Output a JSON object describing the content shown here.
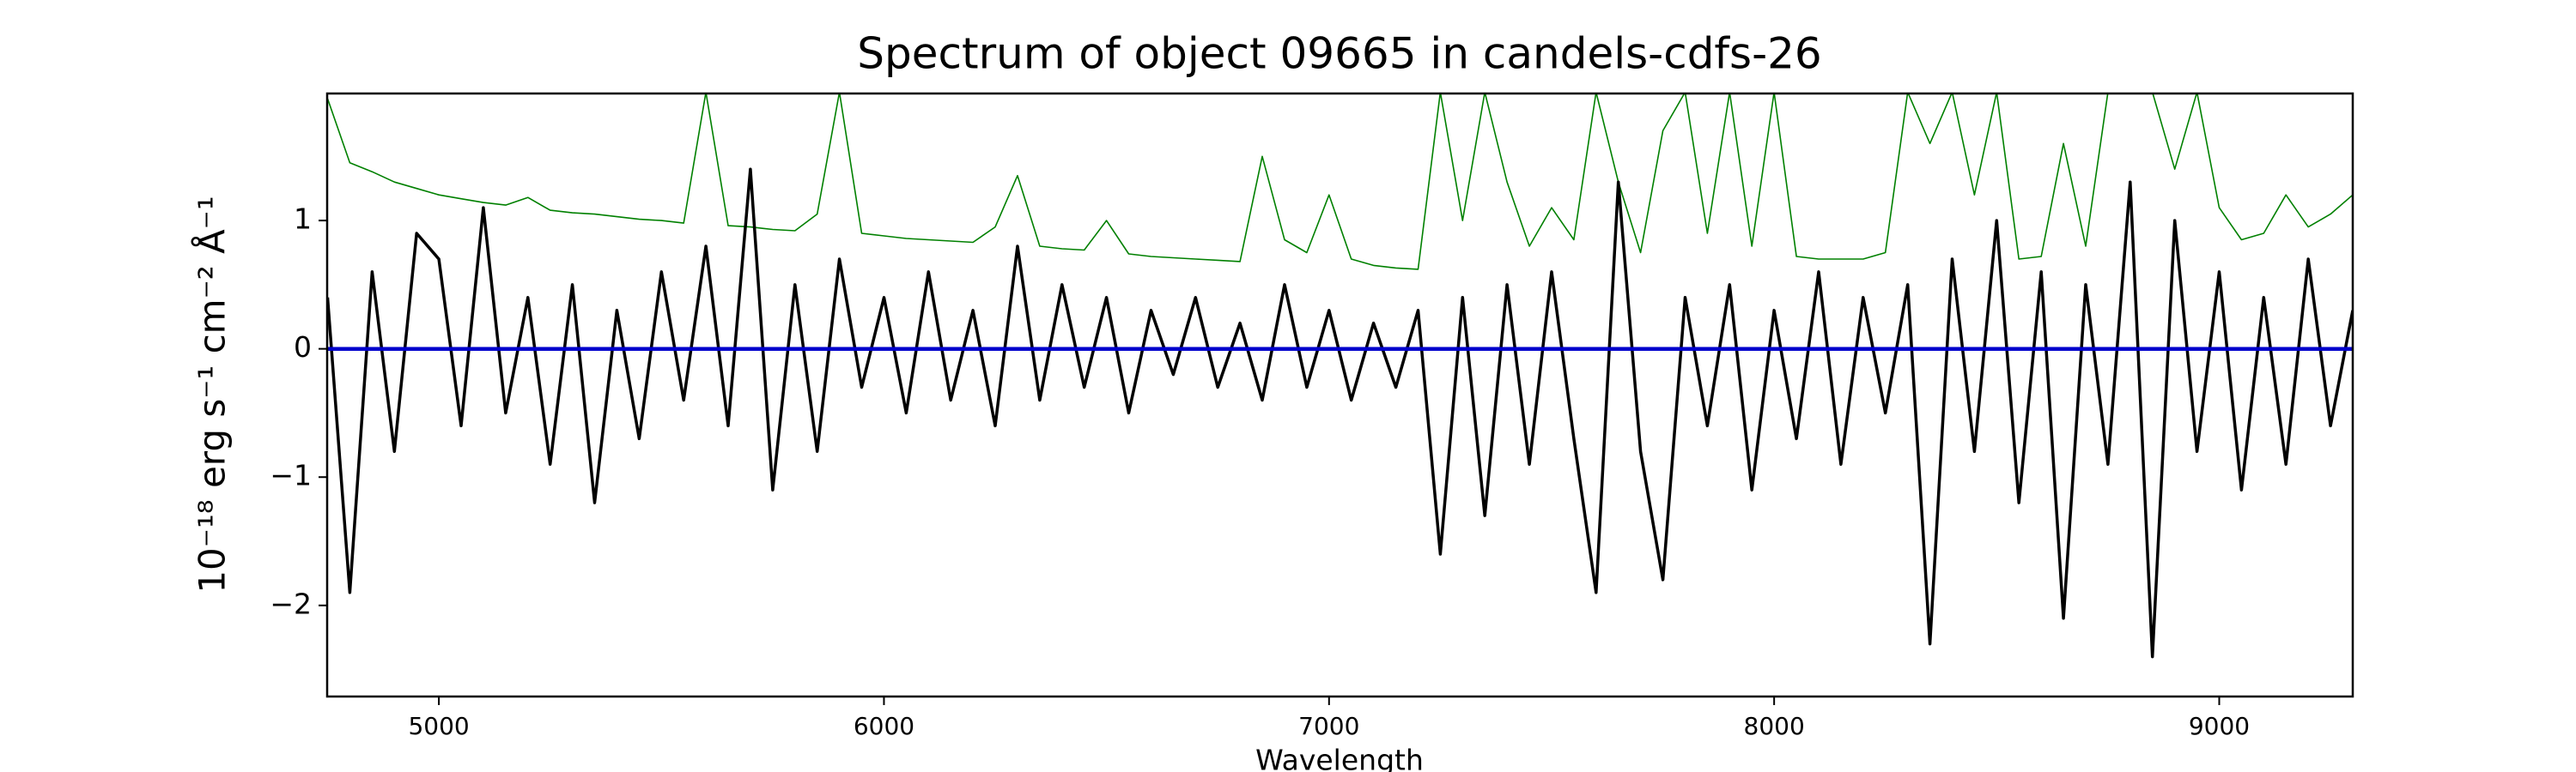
{
  "chart_data": {
    "type": "line",
    "title": "Spectrum of object 09665 in candels-cdfs-26",
    "x_label": "Wavelength",
    "y_label": "10⁻¹⁸ erg s⁻¹ cm⁻² Å⁻¹",
    "x": [
      4750,
      4800,
      4850,
      4900,
      4950,
      5000,
      5050,
      5100,
      5150,
      5200,
      5250,
      5300,
      5350,
      5400,
      5450,
      5500,
      5550,
      5600,
      5650,
      5700,
      5750,
      5800,
      5850,
      5900,
      5950,
      6000,
      6050,
      6100,
      6150,
      6200,
      6250,
      6300,
      6350,
      6400,
      6450,
      6500,
      6550,
      6600,
      6650,
      6700,
      6750,
      6800,
      6850,
      6900,
      6950,
      7000,
      7050,
      7100,
      7150,
      7200,
      7250,
      7300,
      7350,
      7400,
      7450,
      7500,
      7550,
      7600,
      7650,
      7700,
      7750,
      7800,
      7850,
      7900,
      7950,
      8000,
      8050,
      8100,
      8150,
      8200,
      8250,
      8300,
      8350,
      8400,
      8450,
      8500,
      8550,
      8600,
      8650,
      8700,
      8750,
      8800,
      8850,
      8900,
      8950,
      9000,
      9050,
      9100,
      9150,
      9200,
      9250,
      9300
    ],
    "series": [
      {
        "color": "#008000",
        "width": 1.6,
        "values": [
          1.95,
          1.45,
          1.38,
          1.3,
          1.25,
          1.2,
          1.17,
          1.14,
          1.12,
          1.18,
          1.08,
          1.06,
          1.05,
          1.03,
          1.01,
          1.0,
          0.98,
          2.0,
          0.96,
          0.95,
          0.93,
          0.92,
          1.05,
          2.0,
          0.9,
          0.88,
          0.86,
          0.85,
          0.84,
          0.83,
          0.95,
          1.35,
          0.8,
          0.78,
          0.77,
          1.0,
          0.74,
          0.72,
          0.71,
          0.7,
          0.69,
          0.68,
          1.5,
          0.85,
          0.75,
          1.2,
          0.7,
          0.65,
          0.63,
          0.62,
          2.0,
          1.0,
          2.0,
          1.3,
          0.8,
          1.1,
          0.85,
          2.0,
          1.3,
          0.75,
          1.7,
          2.0,
          0.9,
          2.0,
          0.8,
          2.0,
          0.72,
          0.7,
          0.7,
          0.7,
          0.75,
          2.0,
          1.6,
          2.0,
          1.2,
          2.0,
          0.7,
          0.72,
          1.6,
          0.8,
          2.0,
          2.0,
          2.0,
          1.4,
          2.0,
          1.1,
          0.85,
          0.9,
          1.2,
          0.95,
          1.05,
          1.2
        ]
      },
      {
        "color": "#000000",
        "width": 3.5,
        "values": [
          0.4,
          -1.9,
          0.6,
          -0.8,
          0.9,
          0.7,
          -0.6,
          1.1,
          -0.5,
          0.4,
          -0.9,
          0.5,
          -1.2,
          0.3,
          -0.7,
          0.6,
          -0.4,
          0.8,
          -0.6,
          1.4,
          -1.1,
          0.5,
          -0.8,
          0.7,
          -0.3,
          0.4,
          -0.5,
          0.6,
          -0.4,
          0.3,
          -0.6,
          0.8,
          -0.4,
          0.5,
          -0.3,
          0.4,
          -0.5,
          0.3,
          -0.2,
          0.4,
          -0.3,
          0.2,
          -0.4,
          0.5,
          -0.3,
          0.3,
          -0.4,
          0.2,
          -0.3,
          0.3,
          -1.6,
          0.4,
          -1.3,
          0.5,
          -0.9,
          0.6,
          -0.7,
          -1.9,
          1.3,
          -0.8,
          -1.8,
          0.4,
          -0.6,
          0.5,
          -1.1,
          0.3,
          -0.7,
          0.6,
          -0.9,
          0.4,
          -0.5,
          0.5,
          -2.3,
          0.7,
          -0.8,
          1.0,
          -1.2,
          0.6,
          -2.1,
          0.5,
          -0.9,
          1.3,
          -2.4,
          1.0,
          -0.8,
          0.6,
          -1.1,
          0.4,
          -0.9,
          0.7,
          -0.6,
          0.3
        ]
      },
      {
        "color": "#0000cc",
        "width": 4.5,
        "values": [
          0,
          0,
          0,
          0,
          0,
          0,
          0,
          0,
          0,
          0,
          0,
          0,
          0,
          0,
          0,
          0,
          0,
          0,
          0,
          0,
          0,
          0,
          0,
          0,
          0,
          0,
          0,
          0,
          0,
          0,
          0,
          0,
          0,
          0,
          0,
          0,
          0,
          0,
          0,
          0,
          0,
          0,
          0,
          0,
          0,
          0,
          0,
          0,
          0,
          0,
          0,
          0,
          0,
          0,
          0,
          0,
          0,
          0,
          0,
          0,
          0,
          0,
          0,
          0,
          0,
          0,
          0,
          0,
          0,
          0,
          0,
          0,
          0,
          0,
          0,
          0,
          0,
          0,
          0,
          0,
          0,
          0,
          0,
          0,
          0,
          0,
          0,
          0,
          0,
          0,
          0,
          0
        ]
      }
    ],
    "xlim": [
      4749,
      9300
    ],
    "ylim": [
      -2.71,
      1.99
    ],
    "xticks": [
      5000,
      6000,
      7000,
      8000,
      9000
    ],
    "yticks": [
      {
        "value": -2,
        "label": "−2"
      },
      {
        "value": -1,
        "label": "−1"
      },
      0,
      1
    ],
    "grid": false
  }
}
